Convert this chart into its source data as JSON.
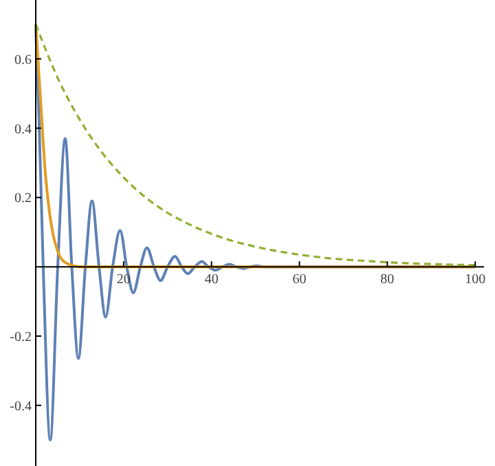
{
  "chart_data": {
    "type": "line",
    "xlim": [
      0,
      102
    ],
    "ylim": [
      -0.575,
      0.77
    ],
    "xticks": [
      20,
      40,
      60,
      80,
      100
    ],
    "yticks": [
      -0.4,
      -0.2,
      0.2,
      0.4,
      0.6
    ],
    "grid": false,
    "marker": "none",
    "series": [
      {
        "color": "#5e81b5",
        "line_style": "solid",
        "x": [
          0,
          0.8,
          1.7,
          3.3,
          5.0,
          6.7,
          8.2,
          9.7,
          11.3,
          12.8,
          14.4,
          15.9,
          17.5,
          19.2,
          20.7,
          22.2,
          23.8,
          25.3,
          26.9,
          28.4,
          30,
          31.7,
          33.2,
          34.6,
          36.2,
          37.8,
          39.3,
          40.9,
          42.5,
          44,
          45.6,
          47.2,
          48.8,
          50.3,
          52,
          60,
          100
        ],
        "values": [
          0.7,
          0.4,
          0,
          -0.5,
          0,
          0.37,
          0,
          -0.265,
          0,
          0.19,
          0,
          -0.145,
          0,
          0.105,
          0,
          -0.075,
          0,
          0.055,
          0,
          -0.04,
          0,
          0.03,
          0,
          -0.02,
          0,
          0.015,
          0,
          -0.01,
          0,
          0.007,
          0,
          -0.005,
          0,
          0.003,
          0,
          0,
          0
        ]
      },
      {
        "color": "#e19c24",
        "line_style": "solid",
        "x": [
          0,
          0.5,
          1,
          1.5,
          2,
          3,
          4,
          5,
          6,
          8,
          10,
          100
        ],
        "values": [
          0.7,
          0.6,
          0.5,
          0.4,
          0.3,
          0.17,
          0.09,
          0.045,
          0.02,
          0.005,
          0,
          0
        ]
      },
      {
        "color": "#8fb032",
        "line_style": "dashed",
        "x": [
          0,
          5,
          10,
          15,
          20,
          25,
          30,
          35,
          40,
          45,
          50,
          55,
          60,
          65,
          70,
          75,
          80,
          85,
          90,
          95,
          100
        ],
        "values": [
          0.7,
          0.545,
          0.425,
          0.331,
          0.258,
          0.2,
          0.156,
          0.122,
          0.095,
          0.074,
          0.058,
          0.045,
          0.035,
          0.027,
          0.021,
          0.017,
          0.013,
          0.01,
          0.008,
          0.006,
          0.005
        ]
      }
    ]
  }
}
